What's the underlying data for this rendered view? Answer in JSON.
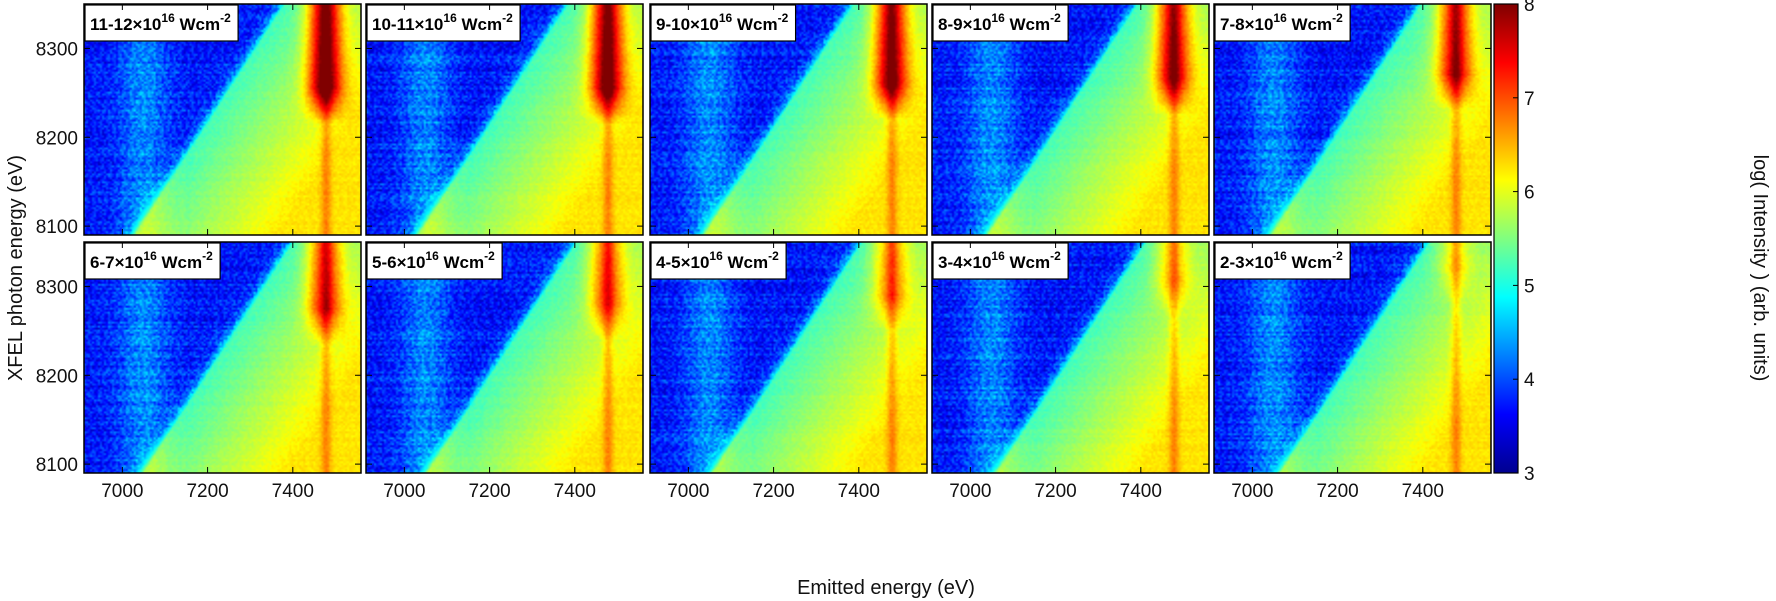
{
  "chart_data": {
    "type": "heatmap",
    "figure_layout": "2 rows x 5 columns of heatmap panels with shared axes and one colorbar",
    "xlabel": "Emitted energy (eV)",
    "ylabel": "XFEL photon energy (eV)",
    "colorbar_label": "log( Intensity )  (arb. units)",
    "colormap": "jet",
    "colorbar_colors": [
      "#00008f",
      "#0000ff",
      "#0080ff",
      "#00ffff",
      "#80ff80",
      "#ffff00",
      "#ff8000",
      "#ff0000",
      "#800000"
    ],
    "xlim": [
      6910,
      7560
    ],
    "ylim": [
      8090,
      8350
    ],
    "clim": [
      3,
      8
    ],
    "xticks": [
      7000,
      7200,
      7400
    ],
    "yticks": [
      8100,
      8200,
      8300
    ],
    "cticks": [
      3,
      4,
      5,
      6,
      7,
      8
    ],
    "xtick_labels": [
      "7000",
      "7200",
      "7400"
    ],
    "ytick_labels": [
      "8100",
      "8200",
      "8300"
    ],
    "ctick_labels": [
      "3",
      "4",
      "5",
      "6",
      "7",
      "8"
    ],
    "panels": [
      {
        "label_range": "11-12",
        "label_mid": "×10",
        "label_exp": "16",
        "label_unit": " Wcm",
        "label_unit_exp": "-2",
        "peak_y_top": 8230,
        "peak_strength": 1.0
      },
      {
        "label_range": "10-11",
        "label_mid": "×10",
        "label_exp": "16",
        "label_unit": " Wcm",
        "label_unit_exp": "-2",
        "peak_y_top": 8230,
        "peak_strength": 0.95
      },
      {
        "label_range": "9-10",
        "label_mid": "×10",
        "label_exp": "16",
        "label_unit": " Wcm",
        "label_unit_exp": "-2",
        "peak_y_top": 8235,
        "peak_strength": 0.9
      },
      {
        "label_range": "8-9",
        "label_mid": "×10",
        "label_exp": "16",
        "label_unit": " Wcm",
        "label_unit_exp": "-2",
        "peak_y_top": 8240,
        "peak_strength": 0.85
      },
      {
        "label_range": "7-8",
        "label_mid": "×10",
        "label_exp": "16",
        "label_unit": " Wcm",
        "label_unit_exp": "-2",
        "peak_y_top": 8245,
        "peak_strength": 0.8
      },
      {
        "label_range": "6-7",
        "label_mid": "×10",
        "label_exp": "16",
        "label_unit": " Wcm",
        "label_unit_exp": "-2",
        "peak_y_top": 8250,
        "peak_strength": 0.7
      },
      {
        "label_range": "5-6",
        "label_mid": "×10",
        "label_exp": "16",
        "label_unit": " Wcm",
        "label_unit_exp": "-2",
        "peak_y_top": 8255,
        "peak_strength": 0.6
      },
      {
        "label_range": "4-5",
        "label_mid": "×10",
        "label_exp": "16",
        "label_unit": " Wcm",
        "label_unit_exp": "-2",
        "peak_y_top": 8265,
        "peak_strength": 0.5
      },
      {
        "label_range": "3-4",
        "label_mid": "×10",
        "label_exp": "16",
        "label_unit": " Wcm",
        "label_unit_exp": "-2",
        "peak_y_top": 8280,
        "peak_strength": 0.4
      },
      {
        "label_range": "2-3",
        "label_mid": "×10",
        "label_exp": "16",
        "label_unit": " Wcm",
        "label_unit_exp": "-2",
        "peak_y_top": 8295,
        "peak_strength": 0.3
      }
    ]
  }
}
